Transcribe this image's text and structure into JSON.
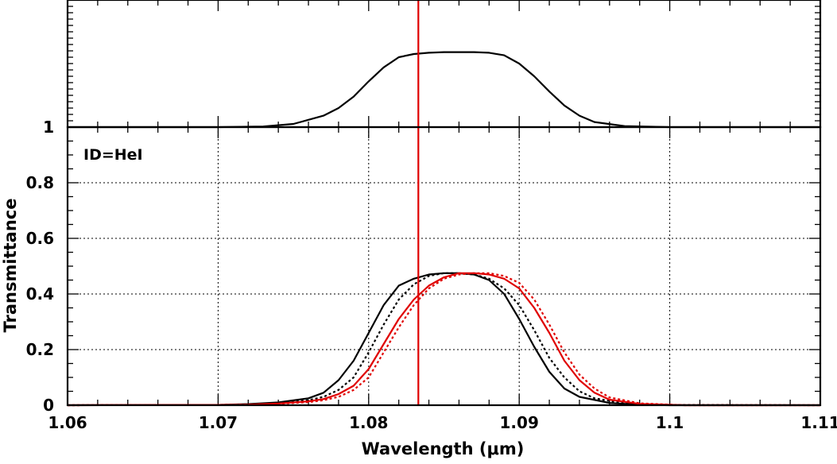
{
  "chart_data": [
    {
      "type": "line",
      "panel": "top",
      "title": "",
      "xlabel": "",
      "ylabel": "",
      "xlim": [
        1.06,
        1.11
      ],
      "ylim": [
        0,
        1
      ],
      "y_tick_labels": [
        "1"
      ],
      "grid": false,
      "series": [
        {
          "color": "#000000",
          "style": "solid",
          "x": [
            1.06,
            1.07,
            1.073,
            1.075,
            1.077,
            1.078,
            1.079,
            1.08,
            1.081,
            1.082,
            1.083,
            1.084,
            1.085,
            1.086,
            1.087,
            1.088,
            1.089,
            1.09,
            1.091,
            1.092,
            1.093,
            1.094,
            1.095,
            1.097,
            1.1,
            1.11
          ],
          "y": [
            0.0,
            0.0,
            0.005,
            0.025,
            0.09,
            0.15,
            0.24,
            0.36,
            0.47,
            0.55,
            0.575,
            0.585,
            0.59,
            0.59,
            0.59,
            0.585,
            0.565,
            0.5,
            0.4,
            0.28,
            0.17,
            0.09,
            0.04,
            0.008,
            0.0,
            0.0
          ]
        }
      ],
      "annotations": [
        {
          "type": "vline",
          "x": 1.0833,
          "color": "#e00000"
        }
      ]
    },
    {
      "type": "line",
      "panel": "bottom",
      "title": "",
      "xlabel": "Wavelength (μm)",
      "ylabel": "Transmittance",
      "xlim": [
        1.06,
        1.11
      ],
      "ylim": [
        0,
        1
      ],
      "x_ticks": [
        1.06,
        1.07,
        1.08,
        1.09,
        1.1,
        1.11
      ],
      "x_tick_labels": [
        "1.06",
        "1.07",
        "1.08",
        "1.09",
        "1.1",
        "1.11"
      ],
      "y_ticks": [
        0,
        0.2,
        0.4,
        0.6,
        0.8,
        1
      ],
      "y_tick_labels": [
        "0",
        "0.2",
        "0.4",
        "0.6",
        "0.8",
        "1"
      ],
      "grid": true,
      "legend_text": "ID=HeI",
      "series": [
        {
          "color": "#000000",
          "style": "solid",
          "x": [
            1.06,
            1.07,
            1.072,
            1.074,
            1.076,
            1.077,
            1.078,
            1.079,
            1.08,
            1.081,
            1.082,
            1.083,
            1.084,
            1.085,
            1.086,
            1.087,
            1.088,
            1.089,
            1.09,
            1.091,
            1.092,
            1.093,
            1.094,
            1.096,
            1.098,
            1.1,
            1.11
          ],
          "y": [
            0.0,
            0.001,
            0.004,
            0.01,
            0.025,
            0.045,
            0.09,
            0.16,
            0.26,
            0.36,
            0.43,
            0.455,
            0.47,
            0.475,
            0.475,
            0.47,
            0.45,
            0.4,
            0.31,
            0.21,
            0.12,
            0.06,
            0.03,
            0.008,
            0.002,
            0.0,
            0.0
          ]
        },
        {
          "color": "#000000",
          "style": "dotted",
          "x": [
            1.06,
            1.07,
            1.072,
            1.074,
            1.076,
            1.077,
            1.078,
            1.079,
            1.08,
            1.081,
            1.082,
            1.083,
            1.084,
            1.085,
            1.086,
            1.087,
            1.088,
            1.089,
            1.09,
            1.091,
            1.092,
            1.093,
            1.094,
            1.095,
            1.097,
            1.099,
            1.11
          ],
          "y": [
            0.0,
            0.001,
            0.003,
            0.008,
            0.018,
            0.03,
            0.055,
            0.1,
            0.19,
            0.29,
            0.38,
            0.435,
            0.465,
            0.475,
            0.475,
            0.47,
            0.455,
            0.42,
            0.36,
            0.27,
            0.17,
            0.1,
            0.05,
            0.025,
            0.006,
            0.001,
            0.0
          ]
        },
        {
          "color": "#e00000",
          "style": "solid",
          "x": [
            1.06,
            1.07,
            1.072,
            1.074,
            1.076,
            1.077,
            1.078,
            1.079,
            1.08,
            1.081,
            1.082,
            1.083,
            1.084,
            1.085,
            1.086,
            1.087,
            1.088,
            1.089,
            1.09,
            1.091,
            1.092,
            1.093,
            1.094,
            1.095,
            1.096,
            1.098,
            1.101,
            1.11
          ],
          "y": [
            0.0,
            0.001,
            0.002,
            0.006,
            0.014,
            0.022,
            0.04,
            0.07,
            0.13,
            0.22,
            0.31,
            0.38,
            0.43,
            0.46,
            0.475,
            0.475,
            0.47,
            0.455,
            0.42,
            0.35,
            0.26,
            0.16,
            0.09,
            0.045,
            0.02,
            0.005,
            0.0,
            0.0
          ]
        },
        {
          "color": "#e00000",
          "style": "dotted",
          "x": [
            1.06,
            1.07,
            1.072,
            1.074,
            1.076,
            1.077,
            1.078,
            1.079,
            1.08,
            1.081,
            1.082,
            1.083,
            1.084,
            1.085,
            1.086,
            1.087,
            1.088,
            1.089,
            1.09,
            1.091,
            1.092,
            1.093,
            1.094,
            1.095,
            1.096,
            1.098,
            1.101,
            1.11
          ],
          "y": [
            0.0,
            0.001,
            0.002,
            0.005,
            0.011,
            0.018,
            0.03,
            0.055,
            0.1,
            0.19,
            0.28,
            0.36,
            0.42,
            0.455,
            0.47,
            0.475,
            0.475,
            0.465,
            0.44,
            0.38,
            0.29,
            0.19,
            0.11,
            0.06,
            0.028,
            0.007,
            0.0,
            0.0
          ]
        }
      ],
      "annotations": [
        {
          "type": "vline",
          "x": 1.0833,
          "color": "#e00000"
        }
      ]
    }
  ]
}
